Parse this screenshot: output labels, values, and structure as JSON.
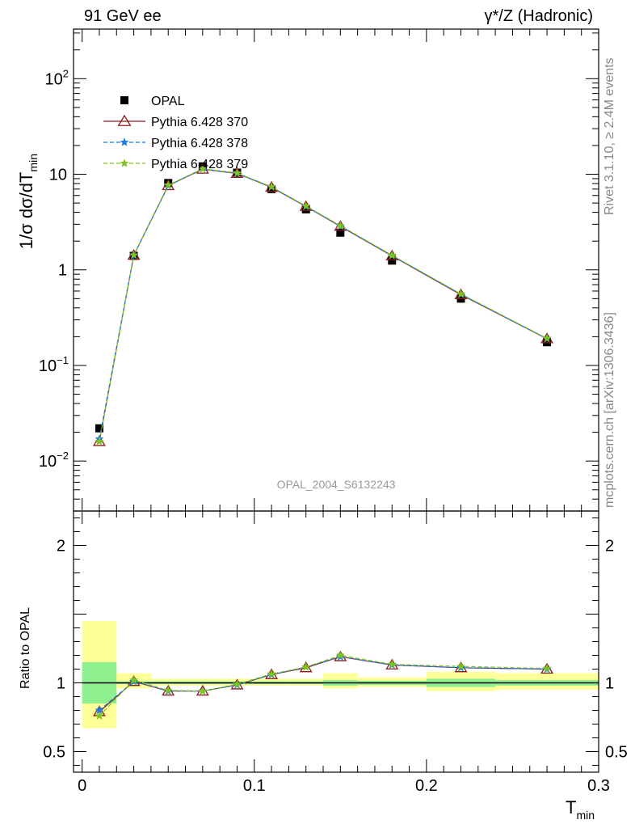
{
  "header": {
    "left": "91 GeV ee",
    "right": "γ*/Z (Hadronic)"
  },
  "side": {
    "rivet": "Rivet 3.1.10, ≥ 2.4M events",
    "mcplots": "mcplots.cern.ch [arXiv:1306.3436]"
  },
  "analysis_label": "OPAL_2004_S6132243",
  "colors": {
    "opal": "#000000",
    "py370": "#8b1a1a",
    "py378": "#1e78e6",
    "py379": "#7cc520",
    "band_inner": "#8ef08e",
    "band_outer": "#ffff99"
  },
  "chart_data": [
    {
      "type": "scatter",
      "xlabel": "T_min",
      "ylabel": "1/σ dσ/dT_min",
      "xlim": [
        -0.005,
        0.3
      ],
      "ylim": [
        0.003,
        330
      ],
      "yscale": "log",
      "legend": "top-left",
      "x": [
        0.01,
        0.03,
        0.05,
        0.07,
        0.09,
        0.11,
        0.13,
        0.15,
        0.18,
        0.22,
        0.27
      ],
      "series": [
        {
          "name": "OPAL",
          "values": [
            0.022,
            1.4,
            8.1,
            12.1,
            10.4,
            7.0,
            4.3,
            2.45,
            1.25,
            0.5,
            0.175
          ]
        },
        {
          "name": "Pythia 6.428 370",
          "values": [
            0.016,
            1.42,
            7.6,
            11.3,
            10.2,
            7.3,
            4.6,
            2.85,
            1.4,
            0.55,
            0.19
          ]
        },
        {
          "name": "Pythia 6.428 378",
          "values": [
            0.017,
            1.42,
            7.6,
            11.4,
            10.25,
            7.35,
            4.62,
            2.87,
            1.41,
            0.555,
            0.19
          ]
        },
        {
          "name": "Pythia 6.428 379",
          "values": [
            0.016,
            1.43,
            7.7,
            11.4,
            10.3,
            7.4,
            4.65,
            2.9,
            1.42,
            0.56,
            0.192
          ]
        }
      ]
    },
    {
      "type": "line",
      "xlabel": "T_min",
      "ylabel": "Ratio to OPAL",
      "xlim": [
        -0.005,
        0.3
      ],
      "ylim": [
        0.35,
        2.25
      ],
      "x": [
        0.01,
        0.03,
        0.05,
        0.07,
        0.09,
        0.11,
        0.13,
        0.15,
        0.18,
        0.22,
        0.27
      ],
      "bins": [
        [
          0.0,
          0.02
        ],
        [
          0.02,
          0.04
        ],
        [
          0.04,
          0.06
        ],
        [
          0.06,
          0.08
        ],
        [
          0.08,
          0.1
        ],
        [
          0.1,
          0.12
        ],
        [
          0.12,
          0.14
        ],
        [
          0.14,
          0.16
        ],
        [
          0.16,
          0.2
        ],
        [
          0.2,
          0.24
        ],
        [
          0.24,
          0.3
        ]
      ],
      "stat_band": [
        [
          0.85,
          1.15
        ],
        [
          0.99,
          1.01
        ],
        [
          0.99,
          1.01
        ],
        [
          0.99,
          1.01
        ],
        [
          0.99,
          1.01
        ],
        [
          0.99,
          1.01
        ],
        [
          0.99,
          1.01
        ],
        [
          0.98,
          1.02
        ],
        [
          0.985,
          1.015
        ],
        [
          0.97,
          1.03
        ],
        [
          0.98,
          1.02
        ]
      ],
      "total_band": [
        [
          0.67,
          1.45
        ],
        [
          0.96,
          1.07
        ],
        [
          0.98,
          1.03
        ],
        [
          0.98,
          1.03
        ],
        [
          0.98,
          1.03
        ],
        [
          0.98,
          1.03
        ],
        [
          0.98,
          1.03
        ],
        [
          0.96,
          1.07
        ],
        [
          0.97,
          1.04
        ],
        [
          0.94,
          1.08
        ],
        [
          0.95,
          1.07
        ]
      ],
      "series": [
        {
          "name": "Pythia 6.428 370",
          "values": [
            0.79,
            1.01,
            0.94,
            0.94,
            0.985,
            1.06,
            1.11,
            1.19,
            1.13,
            1.11,
            1.1
          ]
        },
        {
          "name": "Pythia 6.428 378",
          "values": [
            0.8,
            1.01,
            0.94,
            0.94,
            0.985,
            1.06,
            1.115,
            1.19,
            1.13,
            1.11,
            1.1
          ]
        },
        {
          "name": "Pythia 6.428 379",
          "values": [
            0.76,
            1.02,
            0.945,
            0.94,
            0.99,
            1.065,
            1.115,
            1.2,
            1.135,
            1.12,
            1.105
          ]
        }
      ]
    }
  ],
  "upper_axis": {
    "ticks": [
      {
        "value": 100,
        "base": "10",
        "exp": "2"
      },
      {
        "value": 10,
        "text": "10"
      },
      {
        "value": 1,
        "text": "1"
      },
      {
        "value": 0.1,
        "base": "10",
        "exp": "−1"
      },
      {
        "value": 0.01,
        "base": "10",
        "exp": "−2"
      }
    ]
  },
  "lower_axis": {
    "ticks": [
      {
        "value": 2,
        "text": "2"
      },
      {
        "value": 1,
        "text": "1"
      },
      {
        "value": 0.5,
        "text": "0.5"
      }
    ]
  },
  "x_axis": {
    "ticks": [
      {
        "value": 0,
        "text": "0"
      },
      {
        "value": 0.1,
        "text": "0.1"
      },
      {
        "value": 0.2,
        "text": "0.2"
      },
      {
        "value": 0.3,
        "text": "0.3"
      }
    ]
  }
}
